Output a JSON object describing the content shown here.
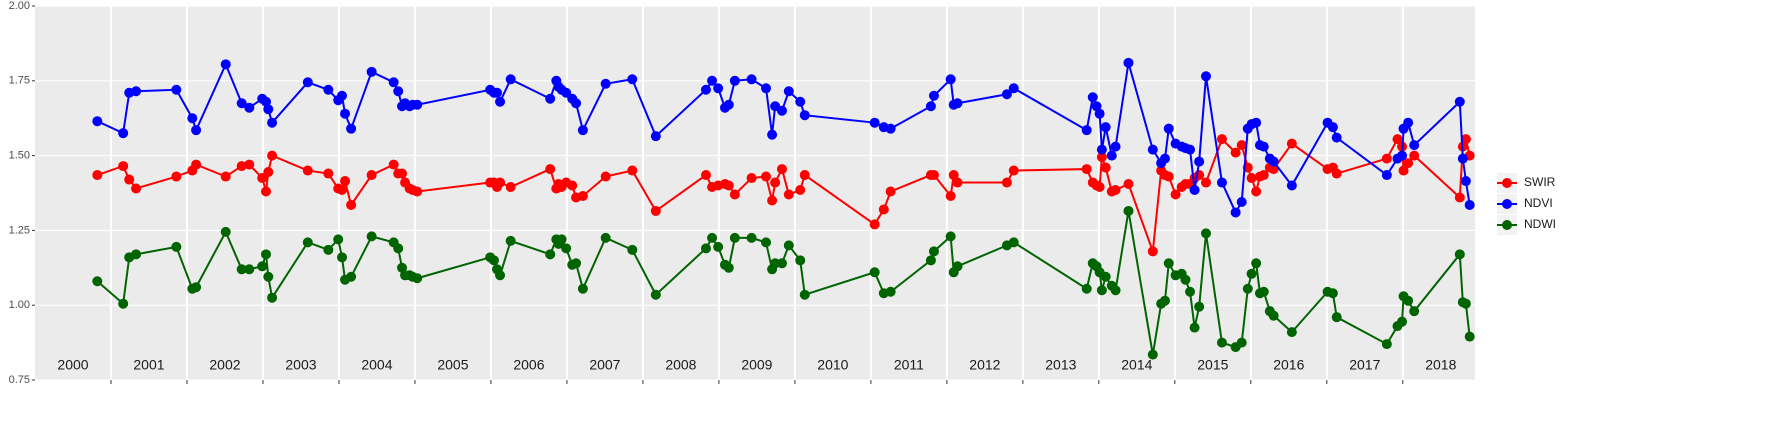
{
  "chart_data": {
    "type": "line",
    "x": [
      2000.82,
      2001.16,
      2001.24,
      2001.33,
      2001.86,
      2002.07,
      2002.12,
      2002.51,
      2002.72,
      2002.82,
      2002.99,
      2003.04,
      2003.07,
      2003.12,
      2003.59,
      2003.86,
      2003.99,
      2004.04,
      2004.08,
      2004.16,
      2004.43,
      2004.72,
      2004.78,
      2004.83,
      2004.87,
      2004.93,
      2004.97,
      2005.03,
      2005.99,
      2006.04,
      2006.08,
      2006.12,
      2006.26,
      2006.78,
      2006.86,
      2006.89,
      2006.93,
      2006.99,
      2007.07,
      2007.12,
      2007.21,
      2007.51,
      2007.86,
      2008.17,
      2008.83,
      2008.91,
      2008.99,
      2009.08,
      2009.13,
      2009.21,
      2009.43,
      2009.62,
      2009.7,
      2009.74,
      2009.83,
      2009.92,
      2010.07,
      2010.13,
      2011.05,
      2011.17,
      2011.26,
      2011.79,
      2011.83,
      2012.05,
      2012.09,
      2012.14,
      2012.79,
      2012.88,
      2013.84,
      2013.92,
      2013.97,
      2014.01,
      2014.04,
      2014.09,
      2014.17,
      2014.22,
      2014.39,
      2014.71,
      2014.82,
      2014.87,
      2014.92,
      2015.01,
      2015.09,
      2015.14,
      2015.2,
      2015.26,
      2015.32,
      2015.41,
      2015.62,
      2015.8,
      2015.88,
      2015.96,
      2016.01,
      2016.07,
      2016.12,
      2016.17,
      2016.25,
      2016.3,
      2016.54,
      2017.01,
      2017.08,
      2017.13,
      2017.79,
      2017.93,
      2017.99,
      2018.01,
      2018.07,
      2018.15,
      2018.75,
      2018.79,
      2018.83,
      2018.88
    ],
    "series": [
      {
        "name": "SWIR",
        "color": "#ff0000",
        "values": [
          1.435,
          1.465,
          1.42,
          1.39,
          1.43,
          1.45,
          1.47,
          1.43,
          1.465,
          1.47,
          1.425,
          1.38,
          1.445,
          1.5,
          1.45,
          1.44,
          1.39,
          1.385,
          1.415,
          1.335,
          1.435,
          1.47,
          1.44,
          1.44,
          1.41,
          1.39,
          1.385,
          1.38,
          1.41,
          1.41,
          1.395,
          1.41,
          1.395,
          1.455,
          1.39,
          1.405,
          1.395,
          1.41,
          1.4,
          1.36,
          1.365,
          1.43,
          1.45,
          1.315,
          1.435,
          1.395,
          1.4,
          1.405,
          1.4,
          1.37,
          1.425,
          1.43,
          1.35,
          1.41,
          1.455,
          1.37,
          1.385,
          1.435,
          1.27,
          1.32,
          1.38,
          1.435,
          1.435,
          1.365,
          1.435,
          1.41,
          1.41,
          1.45,
          1.455,
          1.41,
          1.4,
          1.395,
          1.495,
          1.46,
          1.38,
          1.385,
          1.405,
          1.18,
          1.45,
          1.435,
          1.43,
          1.37,
          1.395,
          1.405,
          1.405,
          1.425,
          1.435,
          1.41,
          1.555,
          1.51,
          1.535,
          1.46,
          1.425,
          1.38,
          1.43,
          1.435,
          1.46,
          1.455,
          1.54,
          1.455,
          1.46,
          1.44,
          1.49,
          1.555,
          1.53,
          1.45,
          1.475,
          1.5,
          1.36,
          1.53,
          1.555,
          1.5
        ]
      },
      {
        "name": "NDVI",
        "color": "#0000ff",
        "values": [
          1.615,
          1.575,
          1.71,
          1.715,
          1.72,
          1.625,
          1.585,
          1.805,
          1.675,
          1.66,
          1.69,
          1.68,
          1.655,
          1.61,
          1.745,
          1.72,
          1.685,
          1.7,
          1.64,
          1.59,
          1.78,
          1.745,
          1.715,
          1.665,
          1.675,
          1.665,
          1.67,
          1.67,
          1.72,
          1.71,
          1.71,
          1.68,
          1.755,
          1.69,
          1.75,
          1.73,
          1.72,
          1.71,
          1.69,
          1.675,
          1.585,
          1.74,
          1.755,
          1.565,
          1.72,
          1.75,
          1.725,
          1.66,
          1.67,
          1.75,
          1.755,
          1.725,
          1.57,
          1.665,
          1.65,
          1.715,
          1.68,
          1.635,
          1.61,
          1.595,
          1.59,
          1.665,
          1.7,
          1.755,
          1.67,
          1.675,
          1.705,
          1.725,
          1.585,
          1.695,
          1.665,
          1.64,
          1.52,
          1.595,
          1.5,
          1.53,
          1.81,
          1.52,
          1.475,
          1.49,
          1.59,
          1.54,
          1.53,
          1.525,
          1.52,
          1.385,
          1.48,
          1.765,
          1.41,
          1.31,
          1.345,
          1.59,
          1.605,
          1.61,
          1.535,
          1.53,
          1.49,
          1.48,
          1.4,
          1.61,
          1.595,
          1.56,
          1.435,
          1.49,
          1.5,
          1.59,
          1.61,
          1.535,
          1.68,
          1.49,
          1.415,
          1.335
        ]
      },
      {
        "name": "NDWI",
        "color": "#006400",
        "values": [
          1.08,
          1.005,
          1.16,
          1.17,
          1.195,
          1.055,
          1.06,
          1.245,
          1.12,
          1.12,
          1.13,
          1.17,
          1.095,
          1.025,
          1.21,
          1.185,
          1.22,
          1.16,
          1.085,
          1.095,
          1.23,
          1.21,
          1.19,
          1.125,
          1.1,
          1.1,
          1.095,
          1.09,
          1.16,
          1.15,
          1.12,
          1.1,
          1.215,
          1.17,
          1.22,
          1.205,
          1.22,
          1.19,
          1.135,
          1.14,
          1.055,
          1.225,
          1.185,
          1.035,
          1.19,
          1.225,
          1.195,
          1.135,
          1.125,
          1.225,
          1.225,
          1.21,
          1.12,
          1.14,
          1.14,
          1.2,
          1.15,
          1.035,
          1.11,
          1.04,
          1.045,
          1.15,
          1.18,
          1.23,
          1.11,
          1.13,
          1.2,
          1.21,
          1.055,
          1.14,
          1.13,
          1.11,
          1.05,
          1.095,
          1.065,
          1.05,
          1.315,
          0.835,
          1.005,
          1.015,
          1.14,
          1.1,
          1.105,
          1.085,
          1.045,
          0.925,
          0.995,
          1.24,
          0.875,
          0.86,
          0.875,
          1.055,
          1.105,
          1.14,
          1.04,
          1.045,
          0.98,
          0.965,
          0.91,
          1.045,
          1.04,
          0.96,
          0.87,
          0.93,
          0.945,
          1.03,
          1.015,
          0.98,
          1.17,
          1.01,
          1.005,
          0.895
        ]
      }
    ],
    "xlim": [
      2000,
      2018.95
    ],
    "ylim": [
      0.75,
      2.0
    ],
    "yticks": [
      {
        "value": 0.75,
        "label": "0.75"
      },
      {
        "value": 1.0,
        "label": "1.00"
      },
      {
        "value": 1.25,
        "label": "1.25"
      },
      {
        "value": 1.5,
        "label": "1.50"
      },
      {
        "value": 1.75,
        "label": "1.75"
      },
      {
        "value": 2.0,
        "label": "2.00"
      }
    ],
    "xgrid": [
      2001,
      2002,
      2003,
      2004,
      2005,
      2006,
      2007,
      2008,
      2009,
      2010,
      2011,
      2012,
      2013,
      2014,
      2015,
      2016,
      2017,
      2018
    ],
    "year_labels": [
      {
        "value": 2000.5,
        "label": "2000"
      },
      {
        "value": 2001.5,
        "label": "2001"
      },
      {
        "value": 2002.5,
        "label": "2002"
      },
      {
        "value": 2003.5,
        "label": "2003"
      },
      {
        "value": 2004.5,
        "label": "2004"
      },
      {
        "value": 2005.5,
        "label": "2005"
      },
      {
        "value": 2006.5,
        "label": "2006"
      },
      {
        "value": 2007.5,
        "label": "2007"
      },
      {
        "value": 2008.5,
        "label": "2008"
      },
      {
        "value": 2009.5,
        "label": "2009"
      },
      {
        "value": 2010.5,
        "label": "2010"
      },
      {
        "value": 2011.5,
        "label": "2011"
      },
      {
        "value": 2012.5,
        "label": "2012"
      },
      {
        "value": 2013.5,
        "label": "2013"
      },
      {
        "value": 2014.5,
        "label": "2014"
      },
      {
        "value": 2015.5,
        "label": "2015"
      },
      {
        "value": 2016.5,
        "label": "2016"
      },
      {
        "value": 2017.5,
        "label": "2017"
      },
      {
        "value": 2018.5,
        "label": "2018"
      }
    ],
    "grid": true,
    "legend": "right"
  }
}
